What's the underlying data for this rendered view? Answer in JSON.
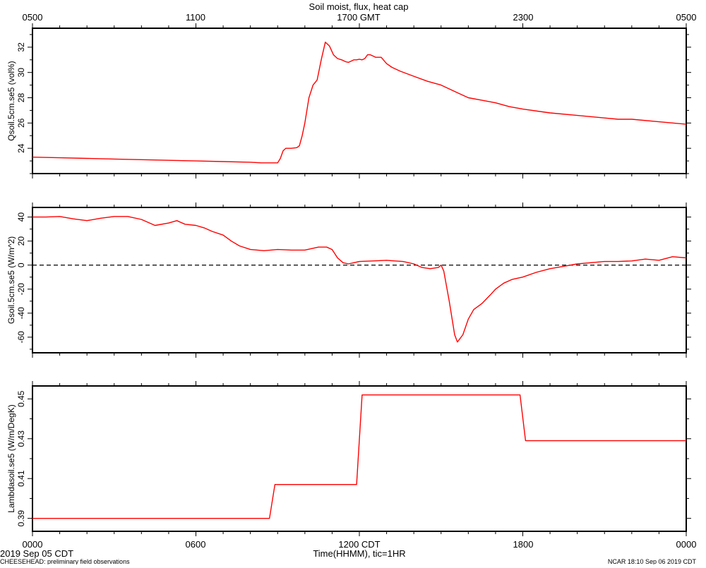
{
  "figure": {
    "title": "Soil moist, flux, heat cap",
    "bottom_left_date": "2019 Sep 05 CDT",
    "footer_left": "CHEESEHEAD: preliminary field observations",
    "footer_right": "NCAR 18:10 Sep 06 2019 CDT",
    "x_axis_label": "Time(HHMM), tic=1HR",
    "top_tick_labels": [
      "0500",
      "1100",
      "1700 GMT",
      "2300",
      "0500"
    ],
    "bottom_tick_labels": [
      "0000",
      "0600",
      "1200 CDT",
      "1800",
      "0000"
    ]
  },
  "colors": {
    "series": "#ff0000",
    "axis": "#000000",
    "zero_line": "#000000"
  },
  "chart_data": [
    {
      "type": "line",
      "ylabel": "Qsoil.5cm.se5 (vol%)",
      "ylim": [
        22,
        33.5
      ],
      "yticks": [
        24,
        26,
        28,
        30,
        32
      ],
      "xlim": [
        0,
        24
      ],
      "series": [
        {
          "x": [
            0,
            1,
            2,
            3,
            4,
            5,
            6,
            7,
            8,
            8.4,
            8.8,
            9.0,
            9.1,
            9.2,
            9.3,
            9.5,
            9.7,
            9.8,
            9.9,
            10.0,
            10.15,
            10.3,
            10.45,
            10.6,
            10.75,
            10.9,
            11.05,
            11.2,
            11.35,
            11.5,
            11.6,
            11.7,
            11.8,
            11.9,
            12.0,
            12.1,
            12.2,
            12.3,
            12.4,
            12.5,
            12.6,
            12.8,
            13.0,
            13.2,
            13.5,
            14,
            14.5,
            15,
            15.5,
            16,
            16.5,
            17,
            17.5,
            18,
            19,
            20,
            21,
            21.5,
            22,
            23,
            23.5,
            24
          ],
          "y": [
            23.3,
            23.25,
            23.2,
            23.15,
            23.1,
            23.05,
            23.0,
            22.95,
            22.9,
            22.85,
            22.85,
            22.85,
            23.2,
            23.8,
            24.0,
            24.0,
            24.05,
            24.2,
            25.0,
            26.0,
            28.0,
            29.0,
            29.4,
            31.0,
            32.4,
            32.1,
            31.4,
            31.1,
            31.0,
            30.85,
            30.8,
            30.9,
            31.0,
            31.0,
            31.05,
            31.0,
            31.1,
            31.4,
            31.4,
            31.3,
            31.2,
            31.2,
            30.7,
            30.4,
            30.1,
            29.7,
            29.3,
            29.0,
            28.5,
            28.0,
            27.8,
            27.6,
            27.3,
            27.1,
            26.8,
            26.6,
            26.4,
            26.3,
            26.3,
            26.1,
            26.0,
            25.9
          ]
        }
      ]
    },
    {
      "type": "line",
      "ylabel": "Gsoil.5cm.se5 (W/m^2)",
      "ylim": [
        -73,
        48
      ],
      "yticks": [
        -60,
        -40,
        -20,
        0,
        20,
        40
      ],
      "reference_line": 0,
      "xlim": [
        0,
        24
      ],
      "series": [
        {
          "x": [
            0,
            0.5,
            1.0,
            1.5,
            2.0,
            2.5,
            3.0,
            3.5,
            4.0,
            4.5,
            5.0,
            5.3,
            5.6,
            6.0,
            6.3,
            6.6,
            7.0,
            7.3,
            7.6,
            8.0,
            8.5,
            9.0,
            9.5,
            10.0,
            10.5,
            10.8,
            11.0,
            11.2,
            11.4,
            11.6,
            11.8,
            12.0,
            12.5,
            13.0,
            13.3,
            13.6,
            14.0,
            14.3,
            14.6,
            14.9,
            15.0,
            15.1,
            15.3,
            15.5,
            15.6,
            15.8,
            16.0,
            16.2,
            16.5,
            16.8,
            17.0,
            17.3,
            17.6,
            18.0,
            18.5,
            19.0,
            19.5,
            20.0,
            20.5,
            21.0,
            21.5,
            22.0,
            22.5,
            23.0,
            23.5,
            24.0
          ],
          "y": [
            40,
            40,
            40.5,
            38.5,
            37,
            39,
            40.5,
            40.5,
            38,
            33,
            35,
            37,
            34,
            33,
            31,
            28,
            25,
            20,
            16,
            13,
            12,
            13,
            12.5,
            12.5,
            15,
            15,
            13,
            6,
            2,
            1,
            2,
            3,
            3.5,
            4,
            3.5,
            3,
            1,
            -2,
            -3,
            -2,
            0,
            -5,
            -30,
            -58,
            -64,
            -58,
            -45,
            -37,
            -32,
            -25,
            -20,
            -15,
            -12,
            -10,
            -6,
            -3,
            -1,
            1,
            2,
            3,
            3,
            3.5,
            5,
            4,
            7,
            6
          ]
        }
      ]
    },
    {
      "type": "line",
      "ylabel": "Lambdasoil.se5 (W/m/DegK)",
      "ylim": [
        0.3835,
        0.4565
      ],
      "yticks": [
        0.39,
        0.41,
        0.43,
        0.45
      ],
      "xlim": [
        0,
        24
      ],
      "series": [
        {
          "x": [
            0,
            8.7,
            8.9,
            11.9,
            12.1,
            17.9,
            18.1,
            24
          ],
          "y": [
            0.39,
            0.39,
            0.407,
            0.407,
            0.452,
            0.452,
            0.429,
            0.429
          ]
        }
      ]
    }
  ]
}
